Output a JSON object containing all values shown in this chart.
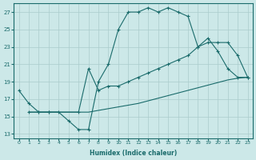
{
  "xlabel": "Humidex (Indice chaleur)",
  "bg_color": "#cce8e8",
  "grid_color": "#aacccc",
  "line_color": "#1a6b6b",
  "xlim": [
    -0.5,
    23.5
  ],
  "ylim": [
    12.5,
    28.0
  ],
  "xticks": [
    0,
    1,
    2,
    3,
    4,
    5,
    6,
    7,
    8,
    9,
    10,
    11,
    12,
    13,
    14,
    15,
    16,
    17,
    18,
    19,
    20,
    21,
    22,
    23
  ],
  "yticks": [
    13,
    15,
    17,
    19,
    21,
    23,
    25,
    27
  ],
  "line1_x": [
    0,
    1,
    2,
    3,
    4,
    5,
    6,
    7,
    8,
    9,
    10,
    11,
    12,
    13,
    14,
    15,
    16,
    17,
    18,
    19,
    20,
    21,
    22,
    23
  ],
  "line1_y": [
    18.0,
    16.5,
    15.5,
    15.5,
    15.5,
    14.5,
    13.5,
    13.5,
    19.0,
    21.0,
    25.0,
    27.0,
    27.0,
    27.5,
    27.0,
    27.5,
    27.0,
    26.5,
    23.0,
    24.0,
    22.5,
    20.5,
    19.5,
    19.5
  ],
  "line2_x": [
    1,
    2,
    3,
    4,
    5,
    6,
    7,
    8,
    9,
    10,
    11,
    12,
    13,
    14,
    15,
    16,
    17,
    18,
    19,
    20,
    21,
    22,
    23
  ],
  "line2_y": [
    15.5,
    15.5,
    15.5,
    15.5,
    15.5,
    15.5,
    15.5,
    15.7,
    15.9,
    16.1,
    16.3,
    16.5,
    16.8,
    17.1,
    17.4,
    17.7,
    18.0,
    18.3,
    18.6,
    18.9,
    19.2,
    19.4,
    19.5
  ],
  "line3_x": [
    1,
    2,
    3,
    6,
    7,
    8,
    9,
    10,
    11,
    12,
    13,
    14,
    15,
    16,
    17,
    18,
    19,
    20,
    21,
    22,
    23
  ],
  "line3_y": [
    15.5,
    15.5,
    15.5,
    15.5,
    20.5,
    18.0,
    18.5,
    18.5,
    19.0,
    19.5,
    20.0,
    20.5,
    21.0,
    21.5,
    22.0,
    23.0,
    23.5,
    23.5,
    23.5,
    22.0,
    19.5
  ]
}
